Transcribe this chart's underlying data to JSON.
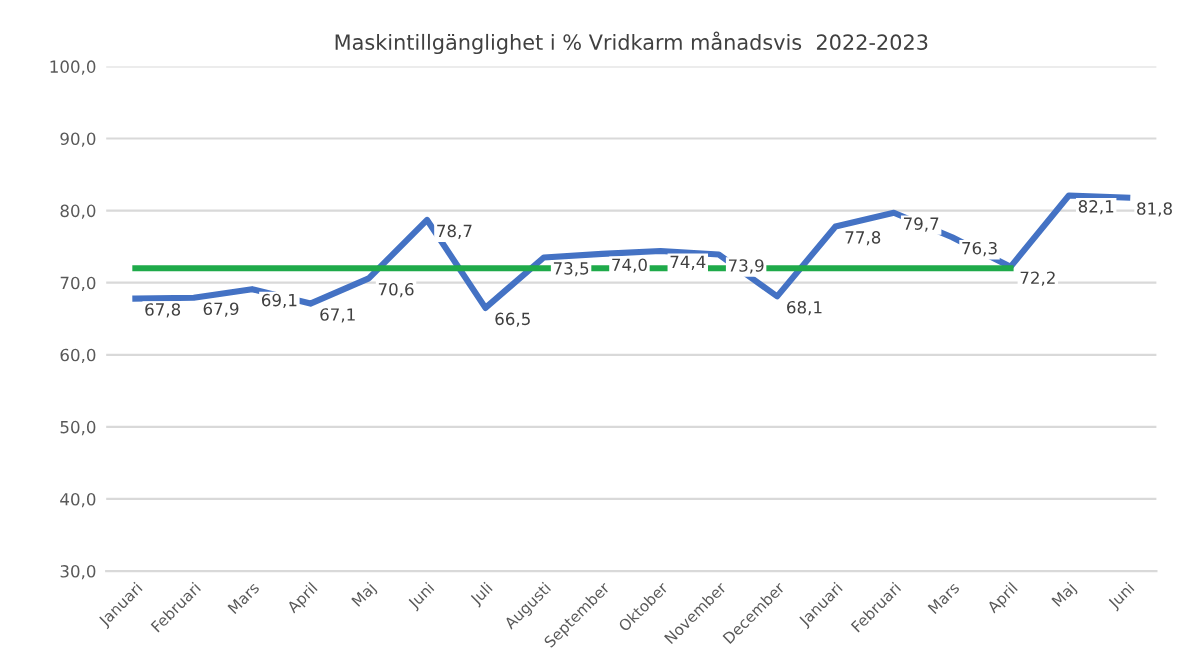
{
  "chart_data": {
    "type": "line",
    "title": "Maskintillgänglighet i % Vridkarm månadsvis  2022-2023",
    "categories": [
      "Januari",
      "Februari",
      "Mars",
      "April",
      "Maj",
      "Juni",
      "Juli",
      "Augusti",
      "September",
      "Oktober",
      "November",
      "December",
      "Januari",
      "Februari",
      "Mars",
      "April",
      "Maj",
      "Juni"
    ],
    "series": [
      {
        "color": "#4472c4",
        "values": [
          67.8,
          67.9,
          69.1,
          67.1,
          70.6,
          78.7,
          66.5,
          73.5,
          74.0,
          74.4,
          73.9,
          68.1,
          77.8,
          79.7,
          76.3,
          72.2,
          82.1,
          81.8
        ],
        "value_labels": [
          "67,8",
          "67,9",
          "69,1",
          "67,1",
          "70,6",
          "78,7",
          "66,5",
          "73,5",
          "74,0",
          "74,4",
          "73,9",
          "68,1",
          "77,8",
          "79,7",
          "76,3",
          "72,2",
          "82,1",
          "81,8"
        ]
      },
      {
        "color": "#1faa4a",
        "values": [
          72,
          72,
          72,
          72,
          72,
          72,
          72,
          72,
          72,
          72,
          72,
          72,
          72,
          72,
          72,
          72,
          null,
          null
        ]
      }
    ],
    "ylim": [
      30,
      100
    ],
    "yticks": [
      {
        "value": 30,
        "label": "30,0"
      },
      {
        "value": 40,
        "label": "40,0"
      },
      {
        "value": 50,
        "label": "50,0"
      },
      {
        "value": 60,
        "label": "60,0"
      },
      {
        "value": 70,
        "label": "70,0"
      },
      {
        "value": 80,
        "label": "80,0"
      },
      {
        "value": 90,
        "label": "90,0"
      },
      {
        "value": 100,
        "label": "100,0"
      }
    ],
    "grid": "y"
  }
}
